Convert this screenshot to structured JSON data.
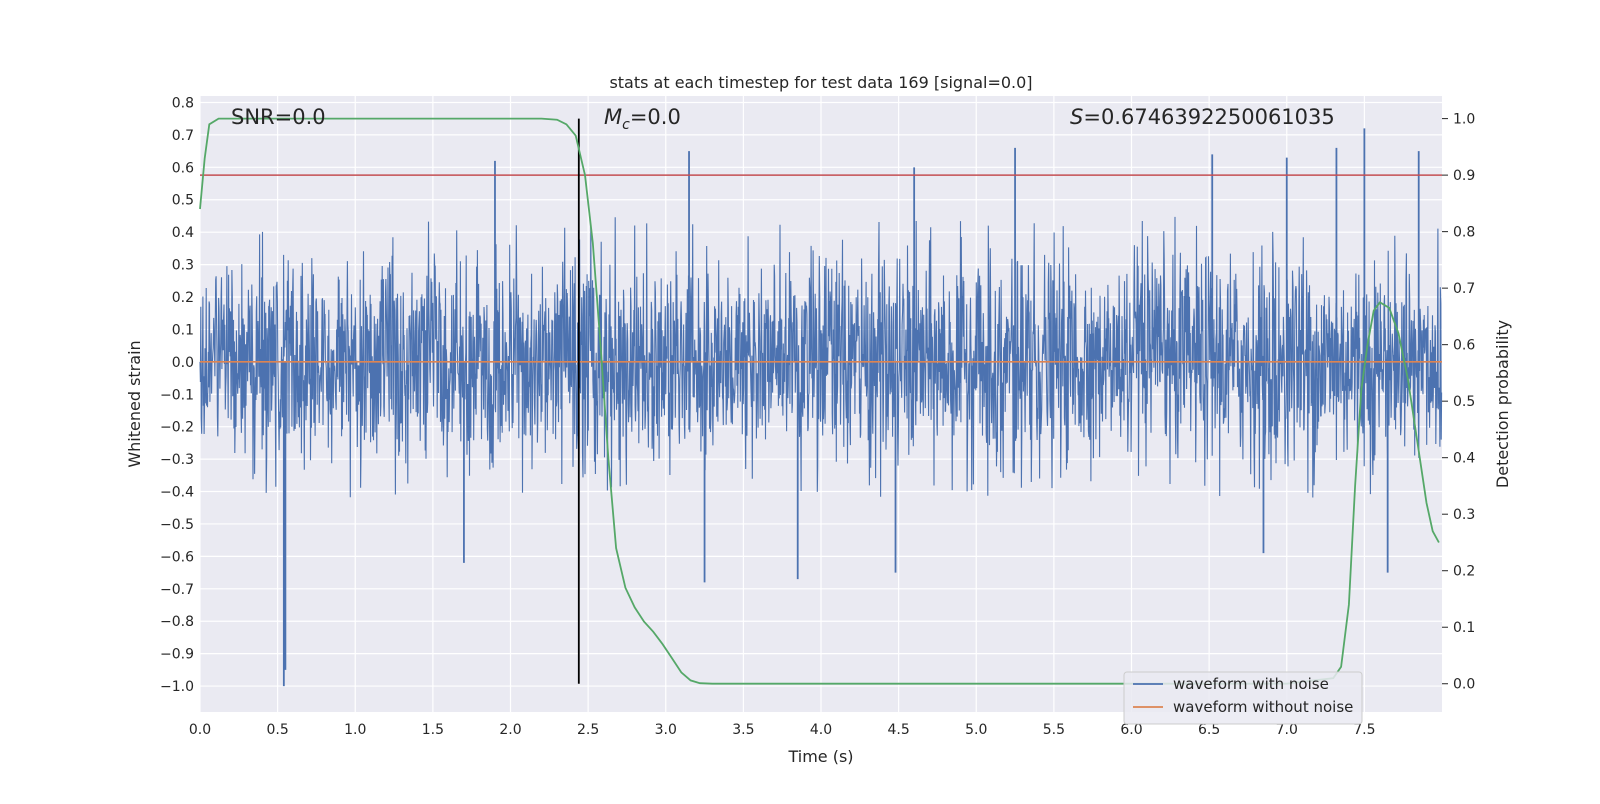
{
  "chart_data": {
    "type": "line",
    "title": "stats at each timestep for test data 169 [signal=0.0]",
    "xlabel": "Time (s)",
    "ylabel_left": "Whitened strain",
    "ylabel_right": "Detection probability",
    "xlim": [
      0.0,
      8.0
    ],
    "ylim_left": [
      -1.08,
      0.82
    ],
    "ylim_right": [
      -0.05,
      1.04
    ],
    "x_ticks": [
      0.0,
      0.5,
      1.0,
      1.5,
      2.0,
      2.5,
      3.0,
      3.5,
      4.0,
      4.5,
      5.0,
      5.5,
      6.0,
      6.5,
      7.0,
      7.5
    ],
    "x_tick_labels": [
      "0.0",
      "0.5",
      "1.0",
      "1.5",
      "2.0",
      "2.5",
      "3.0",
      "3.5",
      "4.0",
      "4.5",
      "5.0",
      "5.5",
      "6.0",
      "6.5",
      "7.0",
      "7.5"
    ],
    "y_left_ticks": [
      0.8,
      0.7,
      0.6,
      0.5,
      0.4,
      0.3,
      0.2,
      0.1,
      0.0,
      -0.1,
      -0.2,
      -0.3,
      -0.4,
      -0.5,
      -0.6,
      -0.7,
      -0.8,
      -0.9,
      -1.0
    ],
    "y_left_tick_labels": [
      "0.8",
      "0.7",
      "0.6",
      "0.5",
      "0.4",
      "0.3",
      "0.2",
      "0.1",
      "0.0",
      "−0.1",
      "−0.2",
      "−0.3",
      "−0.4",
      "−0.5",
      "−0.6",
      "−0.7",
      "−0.8",
      "−0.9",
      "−1.0"
    ],
    "y_right_ticks": [
      1.0,
      0.9,
      0.8,
      0.7,
      0.6,
      0.5,
      0.4,
      0.3,
      0.2,
      0.1,
      0.0
    ],
    "y_right_tick_labels": [
      "1.0",
      "0.9",
      "0.8",
      "0.7",
      "0.6",
      "0.5",
      "0.4",
      "0.3",
      "0.2",
      "0.1",
      "0.0"
    ],
    "annotations": {
      "snr": "SNR=0.0",
      "mc_symbol": "M",
      "mc_sub": "c",
      "mc_value": "=0.0",
      "s_symbol": "S",
      "s_value": "=0.6746392250061035"
    },
    "vertical_marker_x": 2.44,
    "threshold_probability": 0.9,
    "legend": {
      "position": "lower-right",
      "entries": [
        "waveform with noise",
        "waveform without noise"
      ]
    },
    "series": [
      {
        "name": "waveform with noise",
        "axis": "left",
        "color": "#4c72b0",
        "style": "noise",
        "typical_range": [
          -0.42,
          0.45
        ],
        "spikes": [
          {
            "x": 0.54,
            "y": -1.0
          },
          {
            "x": 0.55,
            "y": -0.95
          },
          {
            "x": 1.9,
            "y": 0.62
          },
          {
            "x": 1.7,
            "y": -0.62
          },
          {
            "x": 3.15,
            "y": 0.65
          },
          {
            "x": 3.25,
            "y": -0.68
          },
          {
            "x": 3.85,
            "y": -0.67
          },
          {
            "x": 4.48,
            "y": -0.65
          },
          {
            "x": 4.6,
            "y": 0.6
          },
          {
            "x": 5.25,
            "y": 0.66
          },
          {
            "x": 6.52,
            "y": 0.64
          },
          {
            "x": 6.85,
            "y": -0.59
          },
          {
            "x": 7.0,
            "y": 0.63
          },
          {
            "x": 7.5,
            "y": 0.72
          },
          {
            "x": 7.32,
            "y": 0.66
          },
          {
            "x": 7.85,
            "y": 0.65
          },
          {
            "x": 7.65,
            "y": -0.65
          }
        ]
      },
      {
        "name": "waveform without noise",
        "axis": "left",
        "color": "#dd8452",
        "x": [
          0.0,
          8.0
        ],
        "y": [
          0.0,
          0.0
        ]
      },
      {
        "name": "detection probability",
        "axis": "right",
        "color": "#55a868",
        "x": [
          0.0,
          0.03,
          0.06,
          0.12,
          0.2,
          1.0,
          2.0,
          2.2,
          2.3,
          2.36,
          2.42,
          2.48,
          2.53,
          2.58,
          2.63,
          2.68,
          2.74,
          2.8,
          2.86,
          2.92,
          2.98,
          3.04,
          3.1,
          3.16,
          3.22,
          3.3,
          3.5,
          4.0,
          5.0,
          6.0,
          7.0,
          7.3,
          7.35,
          7.4,
          7.44,
          7.48,
          7.52,
          7.56,
          7.6,
          7.66,
          7.72,
          7.78,
          7.84,
          7.9,
          7.94,
          7.98
        ],
        "y": [
          0.84,
          0.93,
          0.99,
          1.0,
          1.0,
          1.0,
          1.0,
          1.0,
          0.998,
          0.99,
          0.97,
          0.9,
          0.78,
          0.6,
          0.4,
          0.24,
          0.17,
          0.135,
          0.11,
          0.092,
          0.07,
          0.045,
          0.02,
          0.006,
          0.001,
          0.0,
          0.0,
          0.0,
          0.0,
          0.0,
          0.0,
          0.01,
          0.03,
          0.14,
          0.35,
          0.52,
          0.6,
          0.66,
          0.675,
          0.665,
          0.62,
          0.54,
          0.43,
          0.32,
          0.27,
          0.25
        ]
      }
    ]
  }
}
